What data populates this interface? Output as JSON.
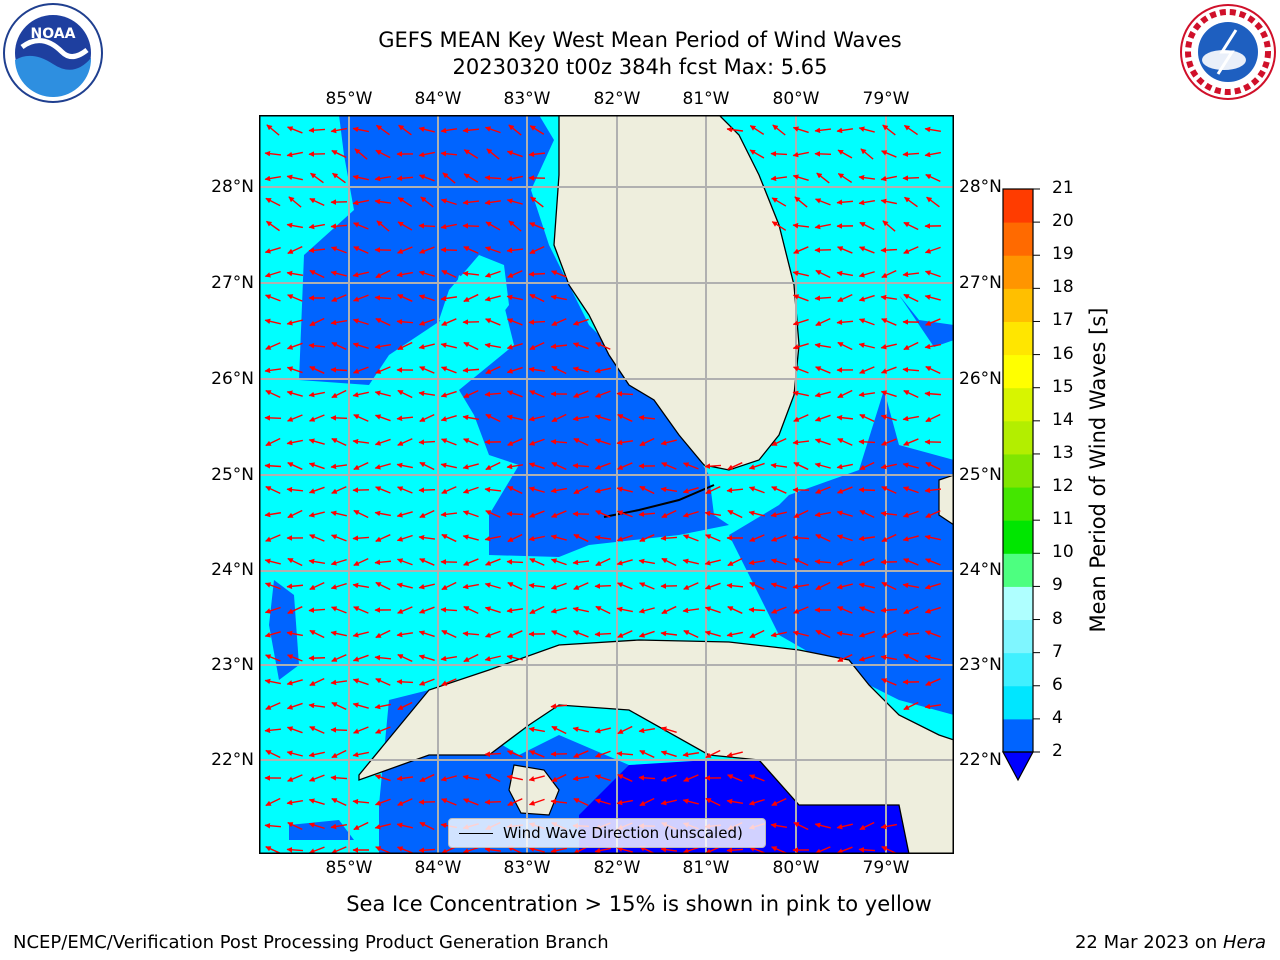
{
  "title": {
    "line1": "GEFS MEAN Key West Mean Period of Wind Waves",
    "line2": "20230320 t00z 384h fcst   Max: 5.65"
  },
  "logos": {
    "left": {
      "name": "NOAA logo",
      "text": "NOAA"
    },
    "right": {
      "name": "National Weather Service logo",
      "text": "NATIONAL WEATHER SERVICE"
    }
  },
  "lon_ticks": [
    "85°W",
    "84°W",
    "83°W",
    "82°W",
    "81°W",
    "80°W",
    "79°W"
  ],
  "lat_ticks": [
    "28°N",
    "27°N",
    "26°N",
    "25°N",
    "24°N",
    "23°N",
    "22°N"
  ],
  "colorbar": {
    "label": "Mean Period of Wind Waves [s]",
    "ticks": [
      "2",
      "4",
      "6",
      "7",
      "8",
      "9",
      "10",
      "11",
      "12",
      "13",
      "14",
      "15",
      "16",
      "17",
      "18",
      "19",
      "20",
      "21"
    ],
    "colors": [
      "#0064ff",
      "#00e6ff",
      "#40f0ff",
      "#7ff6ff",
      "#afffff",
      "#4dff80",
      "#00e600",
      "#44e600",
      "#80e600",
      "#b3ee00",
      "#d7f500",
      "#ffff00",
      "#ffe600",
      "#ffbf00",
      "#ff9500",
      "#ff6a00",
      "#ff3c00",
      "#ff0000"
    ],
    "under_color": "#0000ff"
  },
  "legend": {
    "label": "Wind Wave Direction (unscaled)"
  },
  "subtitle": "Sea Ice Concentration > 15% is shown in pink to yellow",
  "footer": {
    "left": "NCEP/EMC/Verification Post Processing Product Generation Branch",
    "right_prefix": "22 Mar 2023 on ",
    "right_host": "Hera"
  },
  "map_colors": {
    "ocean_cyan": "#00ffff",
    "ocean_blue": "#0064ff",
    "deep_blue": "#0000ff",
    "land": "#eeeedd",
    "arrow": "#ff0000",
    "grid": "#b0b0b0"
  },
  "chart_data": {
    "type": "heatmap",
    "title": "GEFS MEAN Key West Mean Period of Wind Waves",
    "lon_range": [
      -86.0,
      -78.25
    ],
    "lat_range": [
      21.0,
      28.75
    ],
    "max_value": 5.65,
    "units": "s",
    "levels": [
      2,
      4,
      6,
      7,
      8,
      9,
      10,
      11,
      12,
      13,
      14,
      15,
      16,
      17,
      18,
      19,
      20,
      21
    ],
    "arrows_direction": "predominantly westward (easterly wind waves)"
  }
}
